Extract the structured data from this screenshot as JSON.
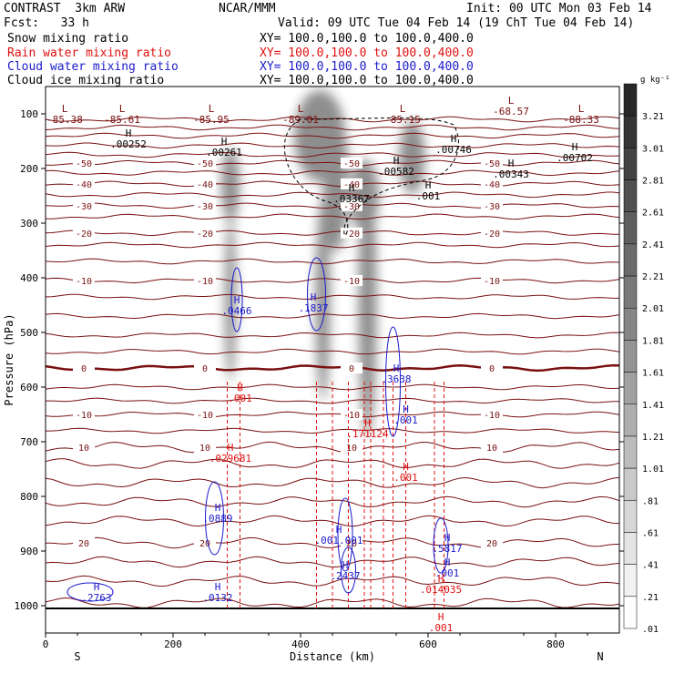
{
  "header": {
    "model": "CONTRAST  3km ARW",
    "org": "NCAR/MMM",
    "init": "Init: 00 UTC Mon 03 Feb 14",
    "fcst": "Fcst:   33 h",
    "valid": "Valid: 09 UTC Tue 04 Feb 14 (19 ChT Tue 04 Feb 14)"
  },
  "fields": [
    {
      "name": "Snow mixing ratio",
      "xy": "XY= 100.0,100.0 to 100.0,400.0",
      "color": "#000000"
    },
    {
      "name": "Rain water mixing ratio",
      "xy": "XY= 100.0,100.0 to 100.0,400.0",
      "color": "#e01010"
    },
    {
      "name": "Cloud water mixing ratio",
      "xy": "XY= 100.0,100.0 to 100.0,400.0",
      "color": "#1a1acc"
    },
    {
      "name": "Cloud ice mixing ratio",
      "xy": "XY= 100.0,100.0 to 100.0,400.0",
      "color": "#000000"
    }
  ],
  "colors": {
    "temperature": "#7a1010",
    "rain": "#e01010",
    "cloud_water": "#1a1acc",
    "ice": "#000000"
  },
  "chart_data": {
    "type": "heatmap",
    "xlabel": "Distance (km)",
    "ylabel": "Pressure (hPa)",
    "xlim": [
      0,
      900
    ],
    "ylim": [
      1050,
      50
    ],
    "x_ticks": [
      0,
      200,
      400,
      600,
      800
    ],
    "y_ticks": [
      100,
      200,
      300,
      400,
      500,
      600,
      700,
      800,
      900,
      1000
    ],
    "x_end_labels": {
      "left": "S",
      "right": "N"
    },
    "colorbar": {
      "unit": "g kg⁻¹",
      "ticks": [
        "3.21",
        "3.01",
        "2.81",
        "2.61",
        "2.41",
        "2.21",
        "2.01",
        "1.81",
        "1.61",
        "1.41",
        "1.21",
        "1.01",
        ".81",
        ".61",
        ".41",
        ".21",
        ".01"
      ]
    },
    "temperature_contours": [
      {
        "label": "-50",
        "level": 190
      },
      {
        "label": "-40",
        "level": 228
      },
      {
        "label": "-30",
        "level": 268
      },
      {
        "label": "-20",
        "level": 318
      },
      {
        "label": "-10",
        "level": 405
      },
      {
        "label": "0",
        "level": 565
      },
      {
        "label": "-10",
        "level": 650
      },
      {
        "label": "10",
        "level": 710
      },
      {
        "label": "20",
        "level": 885
      }
    ],
    "low_labels": [
      {
        "marker": "L",
        "value": "-85.38",
        "x": 30,
        "p": 100
      },
      {
        "marker": "L",
        "value": "-85.61",
        "x": 120,
        "p": 100
      },
      {
        "marker": "L",
        "value": "-85.95",
        "x": 260,
        "p": 100
      },
      {
        "marker": "L",
        "value": "-89.01",
        "x": 400,
        "p": 100
      },
      {
        "marker": "L",
        "value": "-85.15",
        "x": 560,
        "p": 100
      },
      {
        "marker": "L",
        "value": "-68.57",
        "x": 730,
        "p": 85
      },
      {
        "marker": "L",
        "value": "-88.33",
        "x": 840,
        "p": 100
      }
    ],
    "ice_maxima": [
      {
        "value": ".00252",
        "x": 130,
        "p": 145
      },
      {
        "value": ".00261",
        "x": 280,
        "p": 160
      },
      {
        "value": ".00746",
        "x": 640,
        "p": 155
      },
      {
        "value": ".00702",
        "x": 830,
        "p": 170
      },
      {
        "value": ".00582",
        "x": 550,
        "p": 195
      },
      {
        "value": ".00343",
        "x": 730,
        "p": 200
      },
      {
        "value": ".001",
        "x": 600,
        "p": 240
      },
      {
        "value": ".03367",
        "x": 480,
        "p": 245
      }
    ],
    "cloud_water_maxima": [
      {
        "value": ".0466",
        "x": 300,
        "p": 450
      },
      {
        "value": ".1837",
        "x": 420,
        "p": 445
      },
      {
        "value": ".3638",
        "x": 550,
        "p": 575
      },
      {
        "value": ".001",
        "x": 565,
        "p": 650
      },
      {
        "value": ".0889",
        "x": 270,
        "p": 830
      },
      {
        "value": ".001.001",
        "x": 460,
        "p": 870
      },
      {
        "value": ".5817",
        "x": 630,
        "p": 885
      },
      {
        "value": ".2437",
        "x": 470,
        "p": 935
      },
      {
        "value": ".001",
        "x": 630,
        "p": 930
      },
      {
        "value": ".2763",
        "x": 80,
        "p": 975
      },
      {
        "value": ".0132",
        "x": 270,
        "p": 975
      }
    ],
    "rain_maxima": [
      {
        "value": ".001",
        "x": 305,
        "p": 610
      },
      {
        "value": ".171124",
        "x": 505,
        "p": 675
      },
      {
        "value": ".029681",
        "x": 290,
        "p": 720
      },
      {
        "value": ".001",
        "x": 565,
        "p": 755
      },
      {
        "value": ".014035",
        "x": 620,
        "p": 960
      },
      {
        "value": ".001",
        "x": 620,
        "p": 1030
      }
    ]
  }
}
